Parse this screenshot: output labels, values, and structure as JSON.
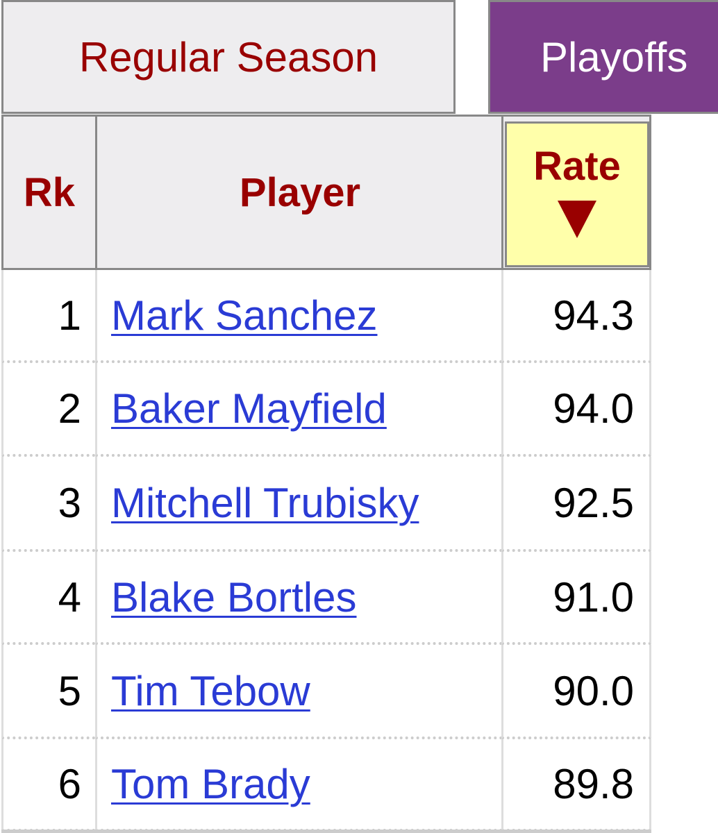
{
  "tabs": [
    "Regular Season",
    "Playoffs"
  ],
  "table": {
    "headers": [
      "Rk",
      "Player",
      "Rate"
    ],
    "rows": [
      [
        "1",
        "Mark Sanchez",
        "94.3"
      ],
      [
        "2",
        "Baker Mayfield",
        "94.0"
      ],
      [
        "3",
        "Mitchell Trubisky",
        "92.5"
      ],
      [
        "4",
        "Blake Bortles",
        "91.0"
      ],
      [
        "5",
        "Tim Tebow",
        "90.0"
      ],
      [
        "6",
        "Tom Brady",
        "89.8"
      ]
    ]
  }
}
